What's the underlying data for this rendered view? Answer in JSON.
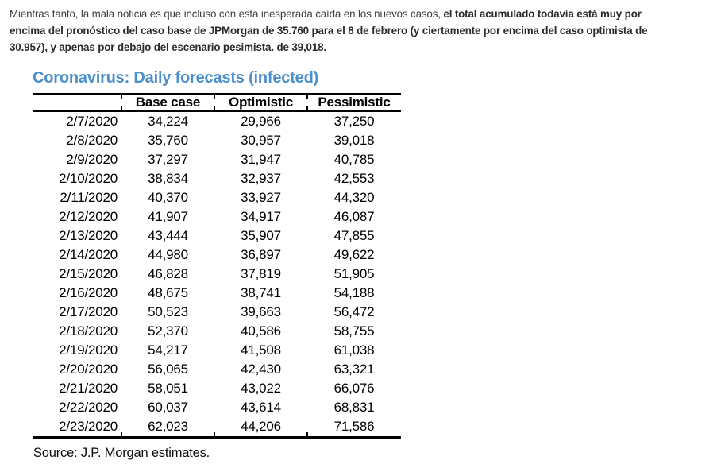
{
  "article": {
    "paragraph_lines": [
      {
        "normal": "Mientras tanto, la mala noticia es que incluso con esta inesperada caída en los nuevos casos, ",
        "bold": "el total acumulado todavía está muy por"
      },
      {
        "normal": "",
        "bold": "encima del pronóstico del caso base de JPMorgan de 35.760 para el 8 de febrero (y ciertamente por encima del caso optimista de"
      },
      {
        "normal": "",
        "bold": "30.957), y apenas por debajo del escenario pesimista. de 39,018."
      }
    ]
  },
  "figure": {
    "title": "Coronavirus: Daily forecasts (infected)",
    "title_color": "#4b90cd",
    "source": "Source: J.P. Morgan estimates."
  },
  "chart_data": {
    "type": "table",
    "title": "Coronavirus: Daily forecasts (infected)",
    "columns": [
      "",
      "Base case",
      "Optimistic",
      "Pessimistic"
    ],
    "rows": [
      [
        "2/7/2020",
        "34,224",
        "29,966",
        "37,250"
      ],
      [
        "2/8/2020",
        "35,760",
        "30,957",
        "39,018"
      ],
      [
        "2/9/2020",
        "37,297",
        "31,947",
        "40,785"
      ],
      [
        "2/10/2020",
        "38,834",
        "32,937",
        "42,553"
      ],
      [
        "2/11/2020",
        "40,370",
        "33,927",
        "44,320"
      ],
      [
        "2/12/2020",
        "41,907",
        "34,917",
        "46,087"
      ],
      [
        "2/13/2020",
        "43,444",
        "35,907",
        "47,855"
      ],
      [
        "2/14/2020",
        "44,980",
        "36,897",
        "49,622"
      ],
      [
        "2/15/2020",
        "46,828",
        "37,819",
        "51,905"
      ],
      [
        "2/16/2020",
        "48,675",
        "38,741",
        "54,188"
      ],
      [
        "2/17/2020",
        "50,523",
        "39,663",
        "56,472"
      ],
      [
        "2/18/2020",
        "52,370",
        "40,586",
        "58,755"
      ],
      [
        "2/19/2020",
        "54,217",
        "41,508",
        "61,038"
      ],
      [
        "2/20/2020",
        "56,065",
        "42,430",
        "63,321"
      ],
      [
        "2/21/2020",
        "58,051",
        "43,022",
        "66,076"
      ],
      [
        "2/22/2020",
        "60,037",
        "43,614",
        "68,831"
      ],
      [
        "2/23/2020",
        "62,023",
        "44,206",
        "71,586"
      ]
    ],
    "source": "Source: J.P. Morgan estimates."
  }
}
